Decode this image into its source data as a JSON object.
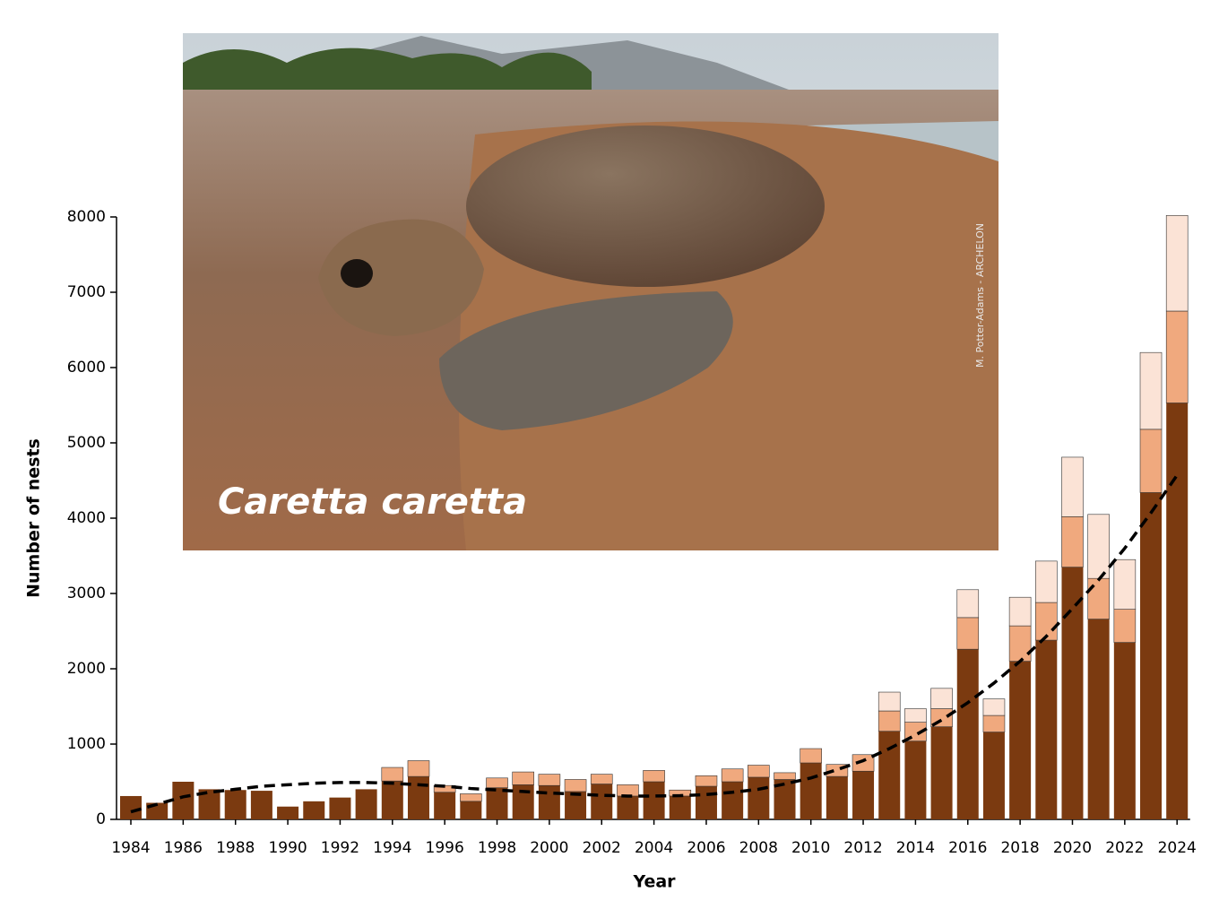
{
  "chart_data": {
    "type": "stacked-bar",
    "xlabel": "Year",
    "ylabel": "Number of nests",
    "categories": [
      "1984",
      null,
      "1986",
      null,
      "1988",
      null,
      "1990",
      null,
      "1992",
      null,
      "1994",
      null,
      "1996",
      null,
      "1998",
      null,
      "2000",
      null,
      "2002",
      null,
      "2004",
      null,
      "2006",
      null,
      "2008",
      null,
      "2010",
      null,
      "2012",
      null,
      "2014",
      null,
      "2016",
      null,
      "2018",
      null,
      "2020",
      null,
      "2022",
      null,
      "2024"
    ],
    "series": [
      {
        "color": "#7b3a10",
        "values": [
          310,
          220,
          500,
          400,
          390,
          380,
          170,
          240,
          290,
          400,
          510,
          570,
          360,
          240,
          420,
          460,
          450,
          370,
          470,
          310,
          500,
          310,
          440,
          500,
          560,
          530,
          750,
          570,
          640,
          1170,
          1040,
          1230,
          2260,
          1160,
          2100,
          2380,
          3350,
          2660,
          2350,
          4340,
          5530
        ]
      },
      {
        "color": "#f0a97e",
        "values": [
          0,
          0,
          0,
          0,
          0,
          0,
          0,
          0,
          0,
          0,
          180,
          210,
          90,
          100,
          130,
          170,
          150,
          160,
          130,
          150,
          150,
          80,
          140,
          170,
          160,
          90,
          190,
          160,
          220,
          270,
          250,
          240,
          420,
          220,
          470,
          500,
          670,
          540,
          440,
          840,
          1220
        ]
      },
      {
        "color": "#fbe3d6",
        "values": [
          0,
          0,
          0,
          0,
          0,
          0,
          0,
          0,
          0,
          0,
          0,
          0,
          0,
          0,
          0,
          0,
          0,
          0,
          0,
          0,
          0,
          0,
          0,
          0,
          0,
          0,
          0,
          0,
          0,
          250,
          180,
          270,
          370,
          220,
          380,
          550,
          790,
          850,
          660,
          1020,
          1270
        ]
      }
    ],
    "trend": {
      "color": "#000000",
      "values": [
        100,
        200,
        300,
        360,
        400,
        440,
        460,
        480,
        490,
        490,
        480,
        460,
        440,
        410,
        390,
        370,
        350,
        335,
        320,
        310,
        310,
        315,
        330,
        360,
        400,
        470,
        550,
        660,
        780,
        940,
        1120,
        1320,
        1550,
        1810,
        2100,
        2430,
        2800,
        3180,
        3600,
        4070,
        4570
      ]
    },
    "ylim": [
      0,
      8000
    ],
    "yticks": [
      0,
      1000,
      2000,
      3000,
      4000,
      5000,
      6000,
      7000,
      8000
    ]
  },
  "photo": {
    "caption": "Caretta caretta",
    "credit": "M. Potter-Adams - ARCHELON"
  }
}
